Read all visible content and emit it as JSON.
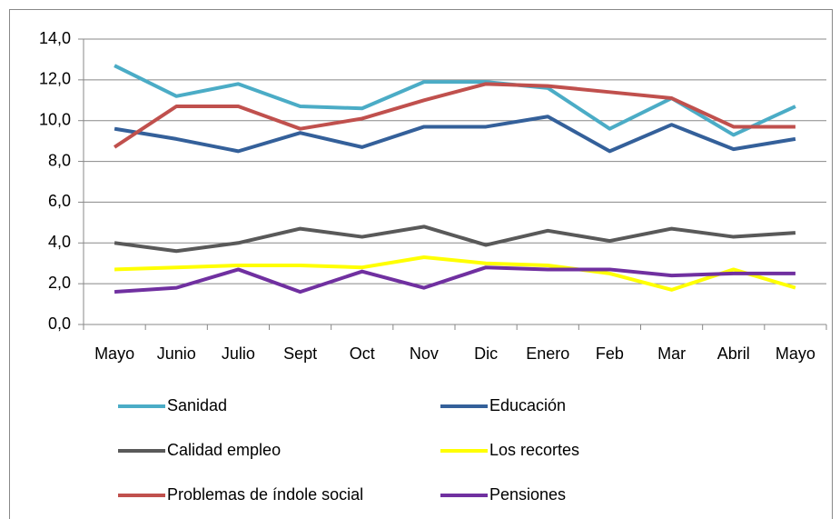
{
  "chart_data": {
    "type": "line",
    "categories": [
      "Mayo",
      "Junio",
      "Julio",
      "Sept",
      "Oct",
      "Nov",
      "Dic",
      "Enero",
      "Feb",
      "Mar",
      "Abril",
      "Mayo"
    ],
    "ylim": [
      0,
      14
    ],
    "yticks": [
      {
        "value": 0,
        "label": "0,0"
      },
      {
        "value": 2,
        "label": "2,0"
      },
      {
        "value": 4,
        "label": "4,0"
      },
      {
        "value": 6,
        "label": "6,0"
      },
      {
        "value": 8,
        "label": "8,0"
      },
      {
        "value": 10,
        "label": "10,0"
      },
      {
        "value": 12,
        "label": "12,0"
      },
      {
        "value": 14,
        "label": "14,0"
      }
    ],
    "grid": true,
    "series": [
      {
        "name": "Sanidad",
        "color": "#4bacc6",
        "values": [
          12.7,
          11.2,
          11.8,
          10.7,
          10.6,
          11.9,
          11.9,
          11.6,
          9.6,
          11.1,
          9.3,
          10.7
        ]
      },
      {
        "name": "Educación",
        "color": "#34609a",
        "values": [
          9.6,
          9.1,
          8.5,
          9.4,
          8.7,
          9.7,
          9.7,
          10.2,
          8.5,
          9.8,
          8.6,
          9.1
        ]
      },
      {
        "name": "Calidad empleo",
        "color": "#595959",
        "values": [
          4.0,
          3.6,
          4.0,
          4.7,
          4.3,
          4.8,
          3.9,
          4.6,
          4.1,
          4.7,
          4.3,
          4.5
        ]
      },
      {
        "name": "Los recortes",
        "color": "#ffff00",
        "values": [
          2.7,
          2.8,
          2.9,
          2.9,
          2.8,
          3.3,
          3.0,
          2.9,
          2.5,
          1.7,
          2.7,
          1.8
        ]
      },
      {
        "name": "Problemas de índole social",
        "color": "#c0504d",
        "values": [
          8.7,
          10.7,
          10.7,
          9.6,
          10.1,
          11.0,
          11.8,
          11.7,
          11.4,
          11.1,
          9.7,
          9.7
        ]
      },
      {
        "name": "Pensiones",
        "color": "#7030a0",
        "values": [
          1.6,
          1.8,
          2.7,
          1.6,
          2.6,
          1.8,
          2.8,
          2.7,
          2.7,
          2.4,
          2.5,
          2.5
        ]
      }
    ]
  }
}
